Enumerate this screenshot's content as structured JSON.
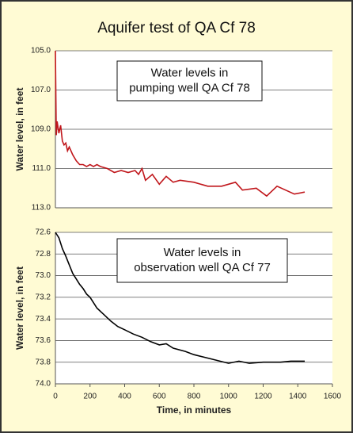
{
  "chart_data": [
    {
      "type": "line",
      "title": "Aquifer test of QA Cf 78",
      "ylabel": "Water level, in feet",
      "annotation": [
        "Water levels in",
        "pumping well QA Cf 78"
      ],
      "xlim": [
        0,
        1600
      ],
      "ylim": [
        105,
        113
      ],
      "inverted": true,
      "yticks": [
        {
          "value": 105,
          "label": "105.0"
        },
        {
          "value": 107,
          "label": "107.0"
        },
        {
          "value": 109,
          "label": "109.0"
        },
        {
          "value": 111,
          "label": "111.0"
        },
        {
          "value": 113,
          "label": "113.0"
        }
      ],
      "grid": true,
      "series": [
        {
          "color": "#c0161b",
          "x": [
            0,
            5,
            10,
            20,
            30,
            40,
            50,
            60,
            70,
            80,
            100,
            120,
            140,
            160,
            180,
            200,
            220,
            240,
            260,
            300,
            340,
            380,
            420,
            460,
            480,
            500,
            520,
            560,
            600,
            640,
            680,
            720,
            800,
            880,
            960,
            1040,
            1080,
            1160,
            1220,
            1280,
            1380,
            1440
          ],
          "values": [
            105.0,
            109.3,
            108.6,
            109.2,
            108.8,
            109.6,
            109.8,
            109.7,
            110.1,
            109.9,
            110.3,
            110.6,
            110.8,
            110.8,
            110.9,
            110.8,
            110.9,
            110.8,
            110.9,
            111.0,
            111.2,
            111.1,
            111.2,
            111.1,
            111.3,
            111.0,
            111.6,
            111.3,
            111.8,
            111.4,
            111.7,
            111.6,
            111.7,
            111.9,
            111.9,
            111.7,
            112.1,
            112.0,
            112.4,
            111.9,
            112.3,
            112.2
          ]
        }
      ]
    },
    {
      "type": "line",
      "ylabel": "Water level, in feet",
      "xlabel": "Time, in minutes",
      "annotation": [
        "Water levels in",
        "observation well QA Cf 77"
      ],
      "xlim": [
        0,
        1600
      ],
      "xticks": [
        0,
        200,
        400,
        600,
        800,
        1000,
        1200,
        1400,
        1600
      ],
      "ylim": [
        72.6,
        74.0
      ],
      "inverted": true,
      "yticks": [
        72.6,
        72.8,
        {
          "value": 73.0,
          "label": "73.0"
        },
        73.2,
        73.4,
        73.6,
        73.8,
        {
          "value": 74.0,
          "label": "74.0"
        }
      ],
      "grid": true,
      "series": [
        {
          "color": "#000000",
          "x": [
            0,
            20,
            40,
            60,
            80,
            100,
            120,
            140,
            160,
            180,
            200,
            240,
            280,
            320,
            360,
            400,
            450,
            500,
            550,
            600,
            640,
            680,
            750,
            800,
            900,
            1000,
            1060,
            1120,
            1200,
            1300,
            1360,
            1440
          ],
          "values": [
            72.6,
            72.65,
            72.75,
            72.82,
            72.9,
            72.98,
            73.03,
            73.08,
            73.12,
            73.17,
            73.2,
            73.3,
            73.36,
            73.42,
            73.47,
            73.5,
            73.54,
            73.57,
            73.61,
            73.64,
            73.63,
            73.67,
            73.7,
            73.73,
            73.77,
            73.81,
            73.79,
            73.81,
            73.8,
            73.8,
            73.79,
            73.79
          ]
        }
      ]
    }
  ]
}
